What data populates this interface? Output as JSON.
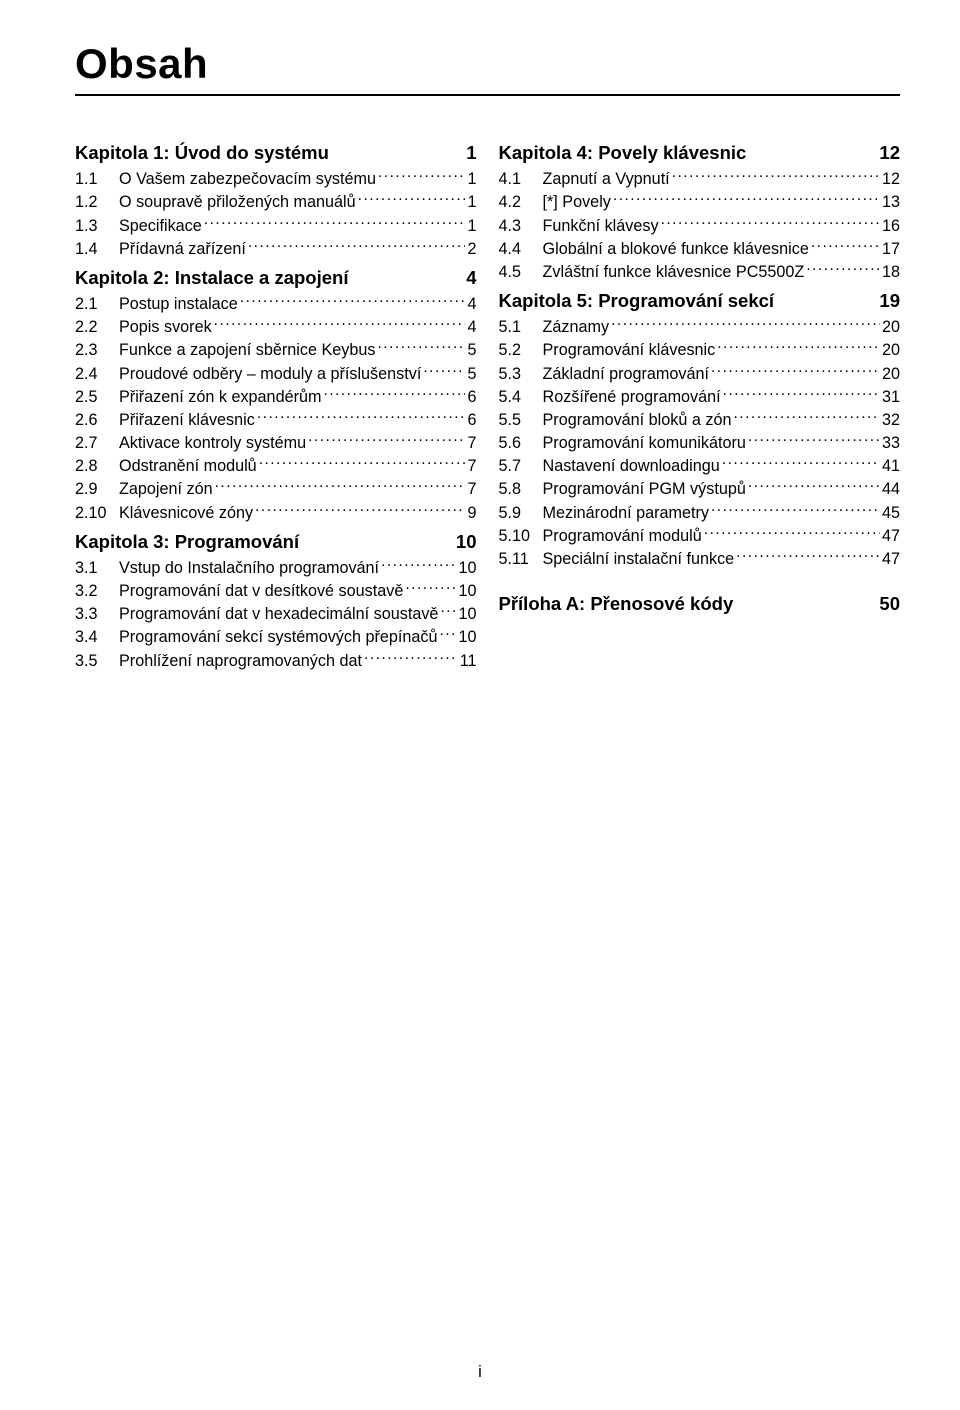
{
  "title": "Obsah",
  "footer": "i",
  "colors": {
    "text": "#000000",
    "background": "#ffffff",
    "rule": "#000000"
  },
  "typography": {
    "title_fontsize_pt": 32,
    "chapter_fontsize_pt": 14,
    "item_fontsize_pt": 12,
    "font_family": "Arial"
  },
  "left": {
    "chapters": [
      {
        "label": "Kapitola 1: Úvod do systému",
        "page": "1",
        "items": [
          {
            "num": "1.1",
            "label": "O Vašem zabezpečovacím systému",
            "page": "1"
          },
          {
            "num": "1.2",
            "label": "O soupravě přiložených manuálů",
            "page": "1"
          },
          {
            "num": "1.3",
            "label": "Specifikace",
            "page": "1"
          },
          {
            "num": "1.4",
            "label": "Přídavná zařízení",
            "page": "2"
          }
        ]
      },
      {
        "label": "Kapitola 2: Instalace a zapojení",
        "page": "4",
        "items": [
          {
            "num": "2.1",
            "label": "Postup instalace",
            "page": "4"
          },
          {
            "num": "2.2",
            "label": "Popis svorek",
            "page": "4"
          },
          {
            "num": "2.3",
            "label": "Funkce a zapojení sběrnice Keybus",
            "page": "5"
          },
          {
            "num": "2.4",
            "label": "Proudové odběry – moduly a příslušenství",
            "page": "5"
          },
          {
            "num": "2.5",
            "label": "Přiřazení zón k expandérům",
            "page": "6"
          },
          {
            "num": "2.6",
            "label": "Přiřazení klávesnic",
            "page": "6"
          },
          {
            "num": "2.7",
            "label": "Aktivace kontroly systému",
            "page": "7"
          },
          {
            "num": "2.8",
            "label": "Odstranění modulů",
            "page": "7"
          },
          {
            "num": "2.9",
            "label": "Zapojení zón",
            "page": "7"
          },
          {
            "num": "2.10",
            "label": "Klávesnicové zóny",
            "page": "9"
          }
        ]
      },
      {
        "label": "Kapitola 3: Programování",
        "page": "10",
        "items": [
          {
            "num": "3.1",
            "label": "Vstup do Instalačního programování",
            "page": "10"
          },
          {
            "num": "3.2",
            "label": "Programování dat v desítkové soustavě",
            "page": "10"
          },
          {
            "num": "3.3",
            "label": "Programování dat v hexadecimální soustavě",
            "page": "10"
          },
          {
            "num": "3.4",
            "label": "Programování sekcí systémových přepínačů",
            "page": "10"
          },
          {
            "num": "3.5",
            "label": "Prohlížení naprogramovaných dat",
            "page": "11"
          }
        ]
      }
    ]
  },
  "right": {
    "chapters": [
      {
        "label": "Kapitola 4: Povely klávesnic",
        "page": "12",
        "items": [
          {
            "num": "4.1",
            "label": "Zapnutí a Vypnutí",
            "page": "12"
          },
          {
            "num": "4.2",
            "label": "[*] Povely",
            "page": "13"
          },
          {
            "num": "4.3",
            "label": "Funkční klávesy",
            "page": "16"
          },
          {
            "num": "4.4",
            "label": "Globální a blokové funkce klávesnice",
            "page": "17"
          },
          {
            "num": "4.5",
            "label": "Zvláštní funkce klávesnice  PC5500Z",
            "page": "18"
          }
        ]
      },
      {
        "label": "Kapitola 5: Programování sekcí",
        "page": "19",
        "items": [
          {
            "num": "5.1",
            "label": "Záznamy",
            "page": "20"
          },
          {
            "num": "5.2",
            "label": "Programování klávesnic",
            "page": "20"
          },
          {
            "num": "5.3",
            "label": "Základní programování",
            "page": "20"
          },
          {
            "num": "5.4",
            "label": "Rozšířené programování",
            "page": "31"
          },
          {
            "num": "5.5",
            "label": "Programování bloků a zón",
            "page": "32"
          },
          {
            "num": "5.6",
            "label": "Programování komunikátoru",
            "page": "33"
          },
          {
            "num": "5.7",
            "label": "Nastavení downloadingu",
            "page": "41"
          },
          {
            "num": "5.8",
            "label": "Programování PGM výstupů",
            "page": "44"
          },
          {
            "num": "5.9",
            "label": "Mezinárodní parametry",
            "page": "45"
          },
          {
            "num": "5.10",
            "label": "Programování modulů",
            "page": "47"
          },
          {
            "num": "5.11",
            "label": "Speciální instalační funkce",
            "page": "47"
          }
        ]
      }
    ],
    "appendix": {
      "label": "Příloha A: Přenosové kódy",
      "page": "50"
    }
  }
}
